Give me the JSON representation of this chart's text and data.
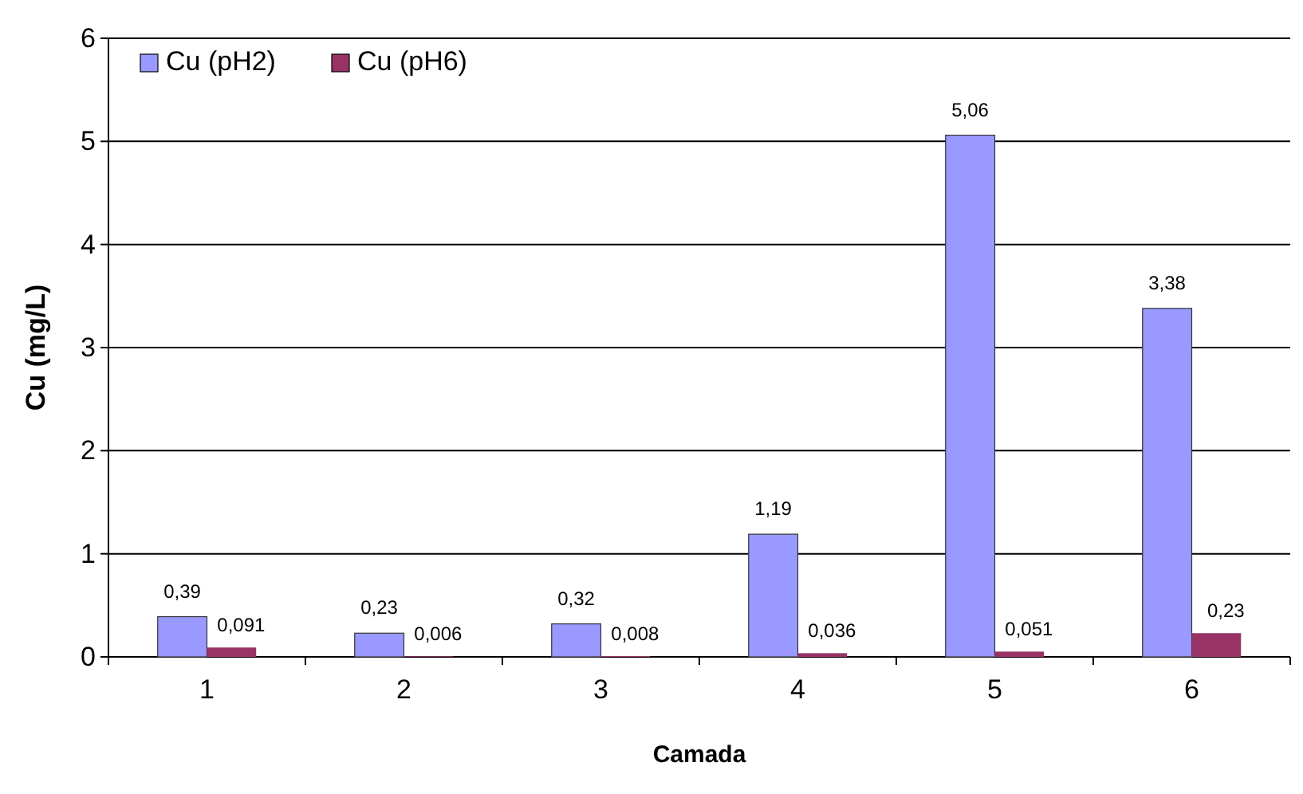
{
  "chart_data": {
    "type": "bar",
    "xlabel": "Camada",
    "ylabel": "Cu (mg/L)",
    "categories": [
      "1",
      "2",
      "3",
      "4",
      "5",
      "6"
    ],
    "series": [
      {
        "name": "Cu (pH2)",
        "color": "#9999ff",
        "values": [
          0.39,
          0.23,
          0.32,
          1.19,
          5.06,
          3.38
        ],
        "value_labels": [
          "0,39",
          "0,23",
          "0,32",
          "1,19",
          "5,06",
          "3,38"
        ]
      },
      {
        "name": "Cu (pH6)",
        "color": "#993366",
        "values": [
          0.091,
          0.006,
          0.008,
          0.036,
          0.051,
          0.23
        ],
        "value_labels": [
          "0,091",
          "0,006",
          "0,008",
          "0,036",
          "0,051",
          "0,23"
        ]
      }
    ],
    "ylim": [
      0,
      6
    ],
    "yticks": [
      0,
      1,
      2,
      3,
      4,
      5,
      6
    ],
    "grid": "y",
    "legend": "top left"
  }
}
